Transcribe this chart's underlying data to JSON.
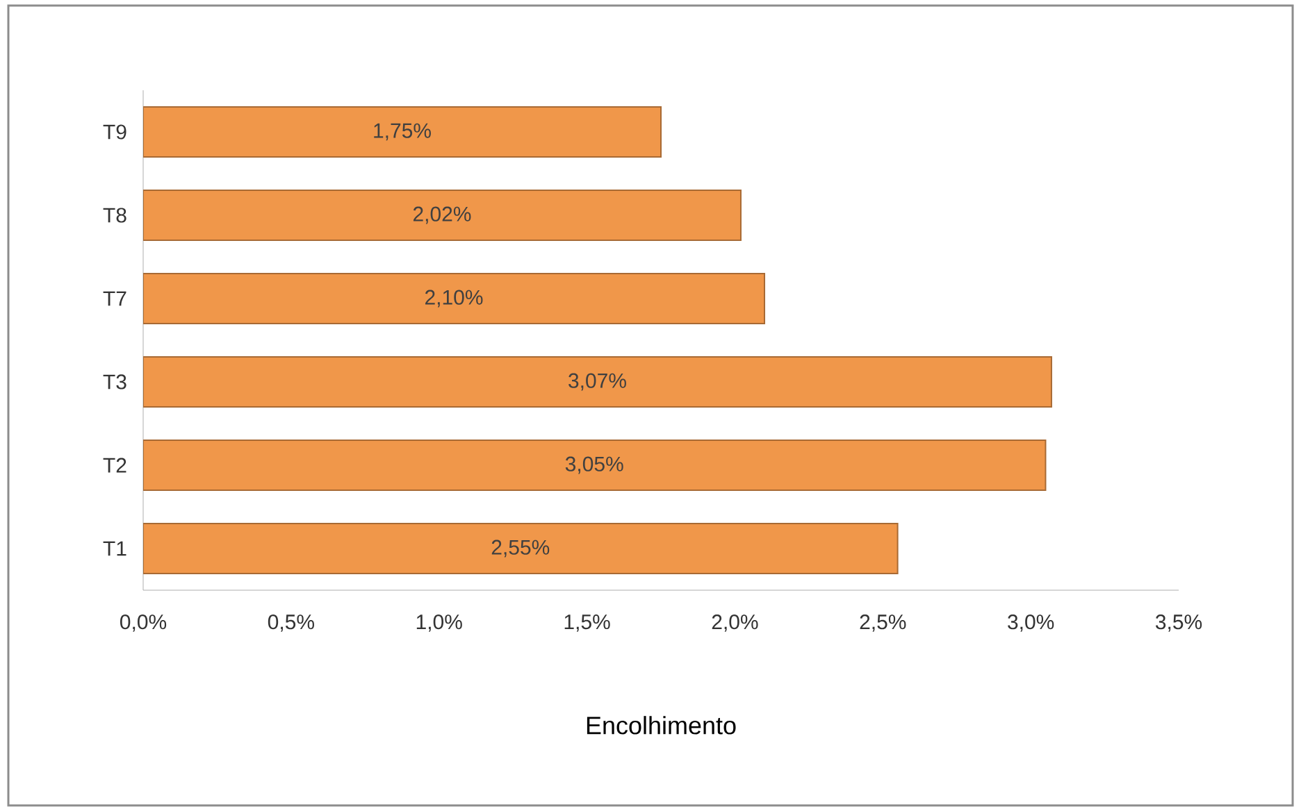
{
  "chart_data": {
    "type": "bar",
    "orientation": "horizontal",
    "xlabel": "Encolhimento",
    "categories": [
      "T9",
      "T8",
      "T7",
      "T3",
      "T2",
      "T1"
    ],
    "values": [
      1.75,
      2.02,
      2.1,
      3.07,
      3.05,
      2.55
    ],
    "value_labels": [
      "1,75%",
      "2,02%",
      "2,10%",
      "3,07%",
      "3,05%",
      "2,55%"
    ],
    "color": "#f0974a",
    "xlim": [
      0,
      3.5
    ],
    "xticks": [
      {
        "value": 0,
        "label": "0,0%"
      },
      {
        "value": 0.5,
        "label": "0,5%"
      },
      {
        "value": 1,
        "label": "1,0%"
      },
      {
        "value": 1.5,
        "label": "1,5%"
      },
      {
        "value": 2,
        "label": "2,0%"
      },
      {
        "value": 2.5,
        "label": "2,5%"
      },
      {
        "value": 3,
        "label": "3,0%"
      },
      {
        "value": 3.5,
        "label": "3,5%"
      }
    ]
  }
}
